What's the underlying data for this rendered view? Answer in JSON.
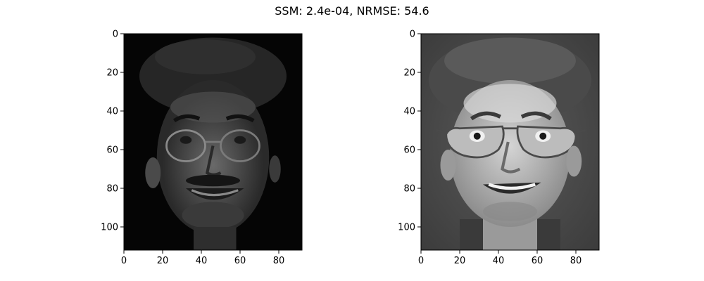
{
  "figure": {
    "title": "SSM: 2.4e-04, NRMSE: 54.6"
  },
  "colors": {
    "background": "#ffffff",
    "axis": "#000000"
  },
  "chart_data": [
    {
      "type": "heatmap",
      "colormap": "gray",
      "content": "reconstructed grayscale face (dark, low contrast)",
      "xlim": [
        0,
        92
      ],
      "ylim": [
        112,
        0
      ],
      "xticks": [
        0,
        20,
        40,
        60,
        80
      ],
      "yticks": [
        0,
        20,
        40,
        60,
        80,
        100
      ],
      "title": "",
      "xlabel": "",
      "ylabel": ""
    },
    {
      "type": "heatmap",
      "colormap": "gray",
      "content": "original grayscale face photo",
      "xlim": [
        0,
        92
      ],
      "ylim": [
        112,
        0
      ],
      "xticks": [
        0,
        20,
        40,
        60,
        80
      ],
      "yticks": [
        0,
        20,
        40,
        60,
        80,
        100
      ],
      "title": "",
      "xlabel": "",
      "ylabel": ""
    }
  ]
}
